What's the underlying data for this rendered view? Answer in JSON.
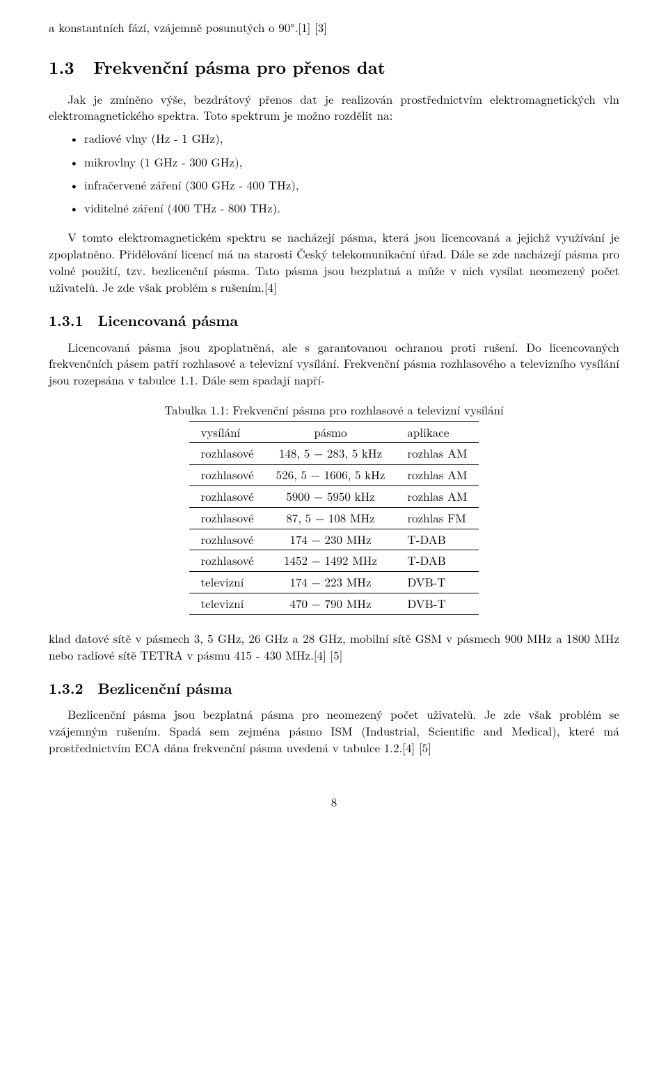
{
  "lead": "a konstantních fází, vzájemně posunutých o 90°.[1] [3]",
  "section": {
    "num": "1.3",
    "title": "Frekvenční pásma pro přenos dat",
    "intro": "Jak je zmíněno výše, bezdrátový přenos dat je realizován prostřednictvím elektromagnetických vln elektromagnetického spektra. Toto spektrum je možno rozdělit na:",
    "items": [
      "radiové vlny (Hz - 1 GHz),",
      "mikrovlny (1 GHz - 300 GHz),",
      "infračervené záření (300 GHz - 400 THz),",
      "viditelné záření (400 THz - 800 THz)."
    ],
    "after": "V tomto elektromagnetickém spektru se nacházejí pásma, která jsou licencovaná a jejichž využívání je zpoplatněno. Přidělování licencí má na starosti Český telekomunikační úřad. Dále se zde nacházejí pásma pro volné použití, tzv. bezlicenční pásma. Tato pásma jsou bezplatná a může v nich vysílat neomezený počet uživatelů. Je zde však problém s rušením.[4]"
  },
  "sub1": {
    "num": "1.3.1",
    "title": "Licencovaná pásma",
    "para1": "Licencovaná pásma jsou zpoplatněná, ale s garantovanou ochranou proti rušení. Do licencovaných frekvenčních pásem patří rozhlasové a televizní vysílání. Frekvenční pásma rozhlasového a televizního vysílání jsou rozepsána v tabulce 1.1. Dále sem spadají napří-",
    "para2": "klad datové sítě v pásmech 3, 5 GHz, 26 GHz a 28 GHz, mobilní sítě GSM v pásmech 900 MHz a 1800 MHz nebo radiové sítě TETRA v pásmu 415 - 430 MHz.[4] [5]"
  },
  "table": {
    "caption": "Tabulka 1.1: Frekvenční pásma pro rozhlasové a televizní vysílání",
    "head": [
      "vysílání",
      "pásmo",
      "aplikace"
    ],
    "rows": [
      [
        "rozhlasové",
        "148, 5 − 283, 5 kHz",
        "rozhlas AM"
      ],
      [
        "rozhlasové",
        "526, 5 − 1606, 5 kHz",
        "rozhlas AM"
      ],
      [
        "rozhlasové",
        "5900 − 5950 kHz",
        "rozhlas AM"
      ],
      [
        "rozhlasové",
        "87, 5 − 108 MHz",
        "rozhlas FM"
      ],
      [
        "rozhlasové",
        "174 − 230 MHz",
        "T-DAB"
      ],
      [
        "rozhlasové",
        "1452 − 1492 MHz",
        "T-DAB"
      ],
      [
        "televizní",
        "174 − 223 MHz",
        "DVB-T"
      ],
      [
        "televizní",
        "470 − 790 MHz",
        "DVB-T"
      ]
    ]
  },
  "sub2": {
    "num": "1.3.2",
    "title": "Bezlicenční pásma",
    "para": "Bezlicenční pásma jsou bezplatná pásma pro neomezený počet uživatelů. Je zde však problém se vzájemným rušením. Spadá sem zejména pásmo ISM (Industrial, Scientific and Medical), které má prostřednictvím ECA dána frekvenční pásma uvedená v tabulce 1.2.[4] [5]"
  },
  "pagenum": "8"
}
